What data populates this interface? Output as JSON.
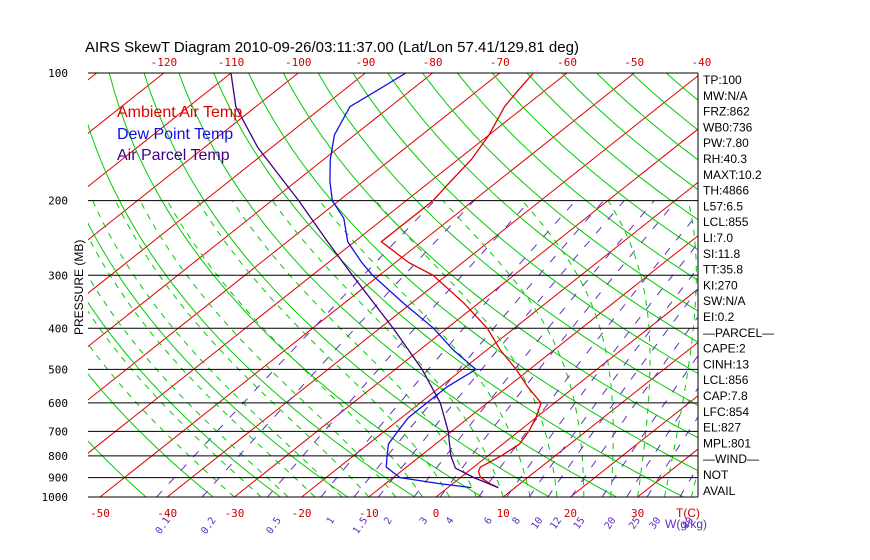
{
  "chart_data": {
    "type": "line",
    "title": "AIRS SkewT Diagram 2010-09-26/03:11:37.00 (Lat/Lon 57.41/129.81 deg)",
    "ylabel": "PRESSURE (MB)",
    "xlabel": "T(C)",
    "mixing_ratio_label": "W(g/kg)",
    "ylim": [
      1000,
      100
    ],
    "pressure_ticks": [
      100,
      200,
      300,
      400,
      500,
      600,
      700,
      800,
      900,
      1000
    ],
    "top_temp_ticks": [
      -120,
      -110,
      -100,
      -90,
      -80,
      -70,
      -60,
      -50,
      -40
    ],
    "bottom_temp_ticks": [
      -50,
      -40,
      -30,
      -20,
      -10,
      0,
      10,
      20,
      30
    ],
    "mixing_ratio_ticks": [
      "0.1",
      "0.2",
      "0.5",
      "1",
      "1.5",
      "2",
      "3",
      "4",
      "6",
      "8",
      "10",
      "12",
      "15",
      "20",
      "25",
      "30",
      "40"
    ],
    "legend": [
      "Ambient Air Temp",
      "Dew Point Temp",
      "Air Parcel Temp"
    ],
    "colors": {
      "ambient": "#e00000",
      "dewpoint": "#1010e0",
      "parcel": "#400080",
      "dry_adiabat": "#00cc00",
      "isotherm": "#e00000",
      "mixing_ratio": "#6030c0",
      "moist_adiabat": "#00cc00",
      "isobar": "#000000",
      "tick_label": "#cc0000"
    },
    "series": [
      {
        "name": "Ambient Air Temp",
        "points": [
          [
            950,
            7.5
          ],
          [
            930,
            5.5
          ],
          [
            900,
            3
          ],
          [
            870,
            1.5
          ],
          [
            850,
            1
          ],
          [
            800,
            2
          ],
          [
            750,
            2.5
          ],
          [
            700,
            1.5
          ],
          [
            650,
            0
          ],
          [
            600,
            -2
          ],
          [
            550,
            -7
          ],
          [
            500,
            -12
          ],
          [
            450,
            -18
          ],
          [
            400,
            -24
          ],
          [
            350,
            -32
          ],
          [
            300,
            -42
          ],
          [
            280,
            -48
          ],
          [
            250,
            -56
          ],
          [
            220,
            -56
          ],
          [
            200,
            -56
          ],
          [
            180,
            -57
          ],
          [
            160,
            -58
          ],
          [
            140,
            -60
          ],
          [
            120,
            -63
          ],
          [
            110,
            -64
          ],
          [
            100,
            -65
          ]
        ]
      },
      {
        "name": "Dew Point Temp",
        "points": [
          [
            950,
            3.5
          ],
          [
            930,
            -2
          ],
          [
            900,
            -9
          ],
          [
            850,
            -13
          ],
          [
            800,
            -15
          ],
          [
            750,
            -17
          ],
          [
            700,
            -18
          ],
          [
            650,
            -19
          ],
          [
            600,
            -19
          ],
          [
            550,
            -19
          ],
          [
            500,
            -18
          ],
          [
            450,
            -25
          ],
          [
            400,
            -32
          ],
          [
            350,
            -41
          ],
          [
            300,
            -51
          ],
          [
            280,
            -55
          ],
          [
            250,
            -61
          ],
          [
            220,
            -66
          ],
          [
            200,
            -71
          ],
          [
            180,
            -75
          ],
          [
            160,
            -79
          ],
          [
            140,
            -83
          ],
          [
            120,
            -86
          ],
          [
            110,
            -85
          ],
          [
            100,
            -84
          ]
        ]
      },
      {
        "name": "Air Parcel Temp",
        "points": [
          [
            950,
            7.5
          ],
          [
            900,
            2
          ],
          [
            855,
            -2.5
          ],
          [
            800,
            -5.5
          ],
          [
            700,
            -10.5
          ],
          [
            600,
            -17
          ],
          [
            500,
            -26
          ],
          [
            400,
            -38
          ],
          [
            300,
            -54
          ],
          [
            250,
            -64
          ],
          [
            200,
            -76
          ],
          [
            150,
            -92
          ],
          [
            120,
            -103
          ],
          [
            100,
            -110
          ]
        ]
      }
    ],
    "indices": [
      "TP:100",
      "MW:N/A",
      "FRZ:862",
      "WB0:736",
      "PW:7.80",
      "RH:40.3",
      "MAXT:10.2",
      "TH:4866",
      "L57:6.5",
      "LCL:855",
      "LI:7.0",
      "SI:11.8",
      "TT:35.8",
      "KI:270",
      "SW:N/A",
      "EI:0.2",
      "—PARCEL—",
      "CAPE:2",
      "CINH:13",
      "LCL:856",
      "CAP:7.8",
      "LFC:854",
      "EL:827",
      "MPL:801",
      "—WIND—",
      "NOT",
      "AVAIL"
    ]
  }
}
